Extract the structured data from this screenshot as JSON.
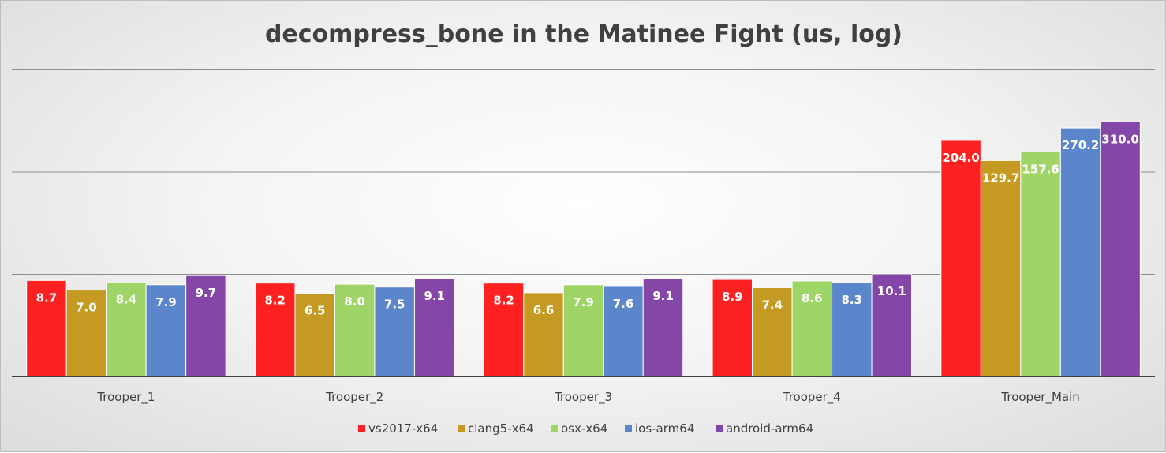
{
  "chart_data": {
    "type": "bar",
    "title": "decompress_bone in the Matinee Fight (us, log)",
    "scale": "log",
    "ylim": [
      1,
      1000
    ],
    "grid": true,
    "legend_position": "bottom",
    "categories": [
      "Trooper_1",
      "Trooper_2",
      "Trooper_3",
      "Trooper_4",
      "Trooper_Main"
    ],
    "series": [
      {
        "name": "vs2017-x64",
        "color": "#ff2121",
        "values": [
          8.7,
          8.2,
          8.2,
          8.9,
          204.0
        ],
        "labels": [
          "8.7",
          "8.2",
          "8.2",
          "8.9",
          "204.0"
        ]
      },
      {
        "name": "clang5-x64",
        "color": "#c59a22",
        "values": [
          7.0,
          6.5,
          6.6,
          7.4,
          129.7
        ],
        "labels": [
          "7.0",
          "6.5",
          "6.6",
          "7.4",
          "129.7"
        ]
      },
      {
        "name": "osx-x64",
        "color": "#9fd566",
        "values": [
          8.4,
          8.0,
          7.9,
          8.6,
          157.6
        ],
        "labels": [
          "8.4",
          "8.0",
          "7.9",
          "8.6",
          "157.6"
        ]
      },
      {
        "name": "ios-arm64",
        "color": "#5b86cc",
        "values": [
          7.9,
          7.5,
          7.6,
          8.3,
          270.2
        ],
        "labels": [
          "7.9",
          "7.5",
          "7.6",
          "8.3",
          "270.2"
        ]
      },
      {
        "name": "android-arm64",
        "color": "#8447a8",
        "values": [
          9.7,
          9.1,
          9.1,
          10.1,
          310.0
        ],
        "labels": [
          "9.7",
          "9.1",
          "9.1",
          "10.1",
          "310.0"
        ]
      }
    ]
  }
}
